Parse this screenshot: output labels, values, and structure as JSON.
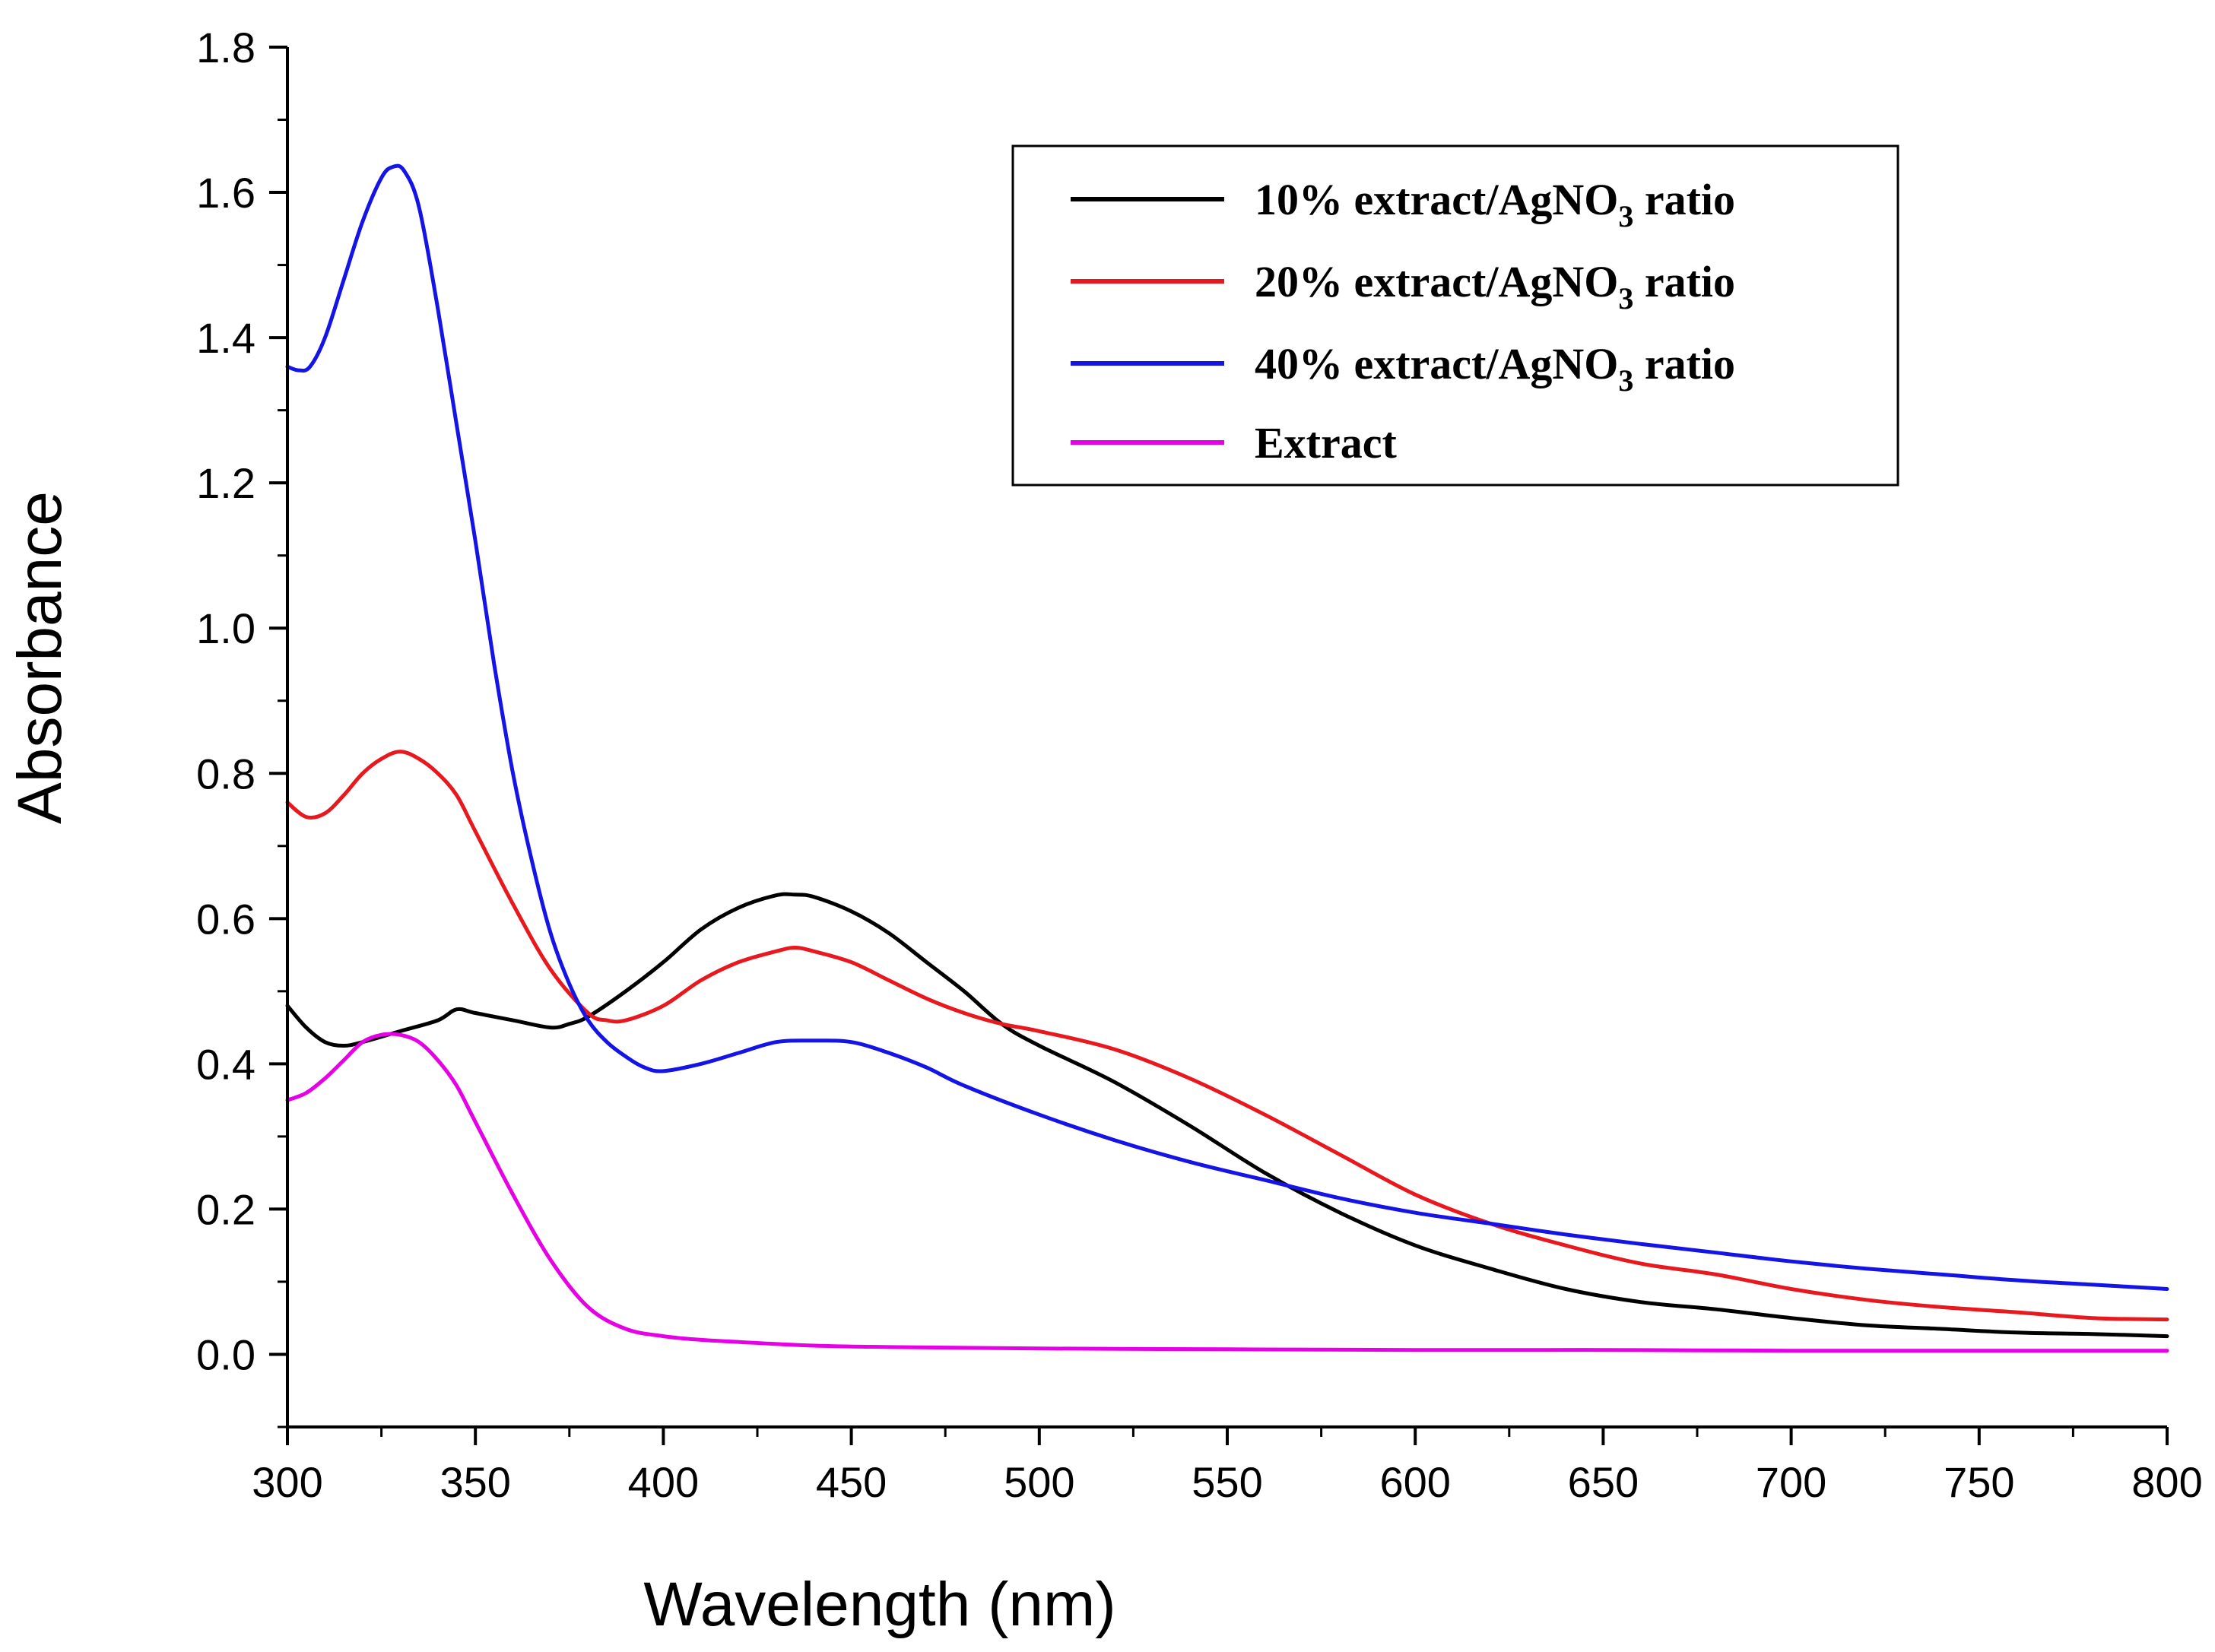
{
  "chart_data": {
    "type": "line",
    "xlabel": "Wavelength (nm)",
    "ylabel": "Absorbance",
    "xlim": [
      300,
      800
    ],
    "ylim": [
      -0.1,
      1.8
    ],
    "xticks": [
      "300",
      "350",
      "400",
      "450",
      "500",
      "550",
      "600",
      "650",
      "700",
      "750",
      "800"
    ],
    "yticks": [
      "0.0",
      "0.2",
      "0.4",
      "0.6",
      "0.8",
      "1.0",
      "1.2",
      "1.4",
      "1.6",
      "1.8"
    ],
    "grid": false,
    "legend_position": "top-right",
    "series": [
      {
        "name": "10% extract/AgNO3 ratio",
        "legend_parts": [
          "10% extract/AgNO",
          "3",
          " ratio"
        ],
        "color": "#000000",
        "x": [
          300,
          305,
          310,
          315,
          320,
          330,
          340,
          345,
          350,
          360,
          370,
          375,
          380,
          390,
          400,
          410,
          420,
          430,
          435,
          440,
          450,
          460,
          470,
          480,
          490,
          500,
          520,
          540,
          560,
          580,
          600,
          620,
          640,
          660,
          680,
          700,
          720,
          740,
          760,
          780,
          800
        ],
        "y": [
          0.48,
          0.45,
          0.43,
          0.425,
          0.43,
          0.445,
          0.46,
          0.475,
          0.47,
          0.46,
          0.45,
          0.455,
          0.465,
          0.5,
          0.54,
          0.585,
          0.615,
          0.632,
          0.633,
          0.63,
          0.61,
          0.58,
          0.54,
          0.5,
          0.455,
          0.425,
          0.375,
          0.315,
          0.25,
          0.195,
          0.15,
          0.118,
          0.09,
          0.072,
          0.062,
          0.05,
          0.04,
          0.035,
          0.03,
          0.028,
          0.025
        ]
      },
      {
        "name": "20% extract/AgNO3 ratio",
        "legend_parts": [
          "20% extract/AgNO",
          "3",
          " ratio"
        ],
        "color": "#e8191e",
        "x": [
          300,
          305,
          310,
          315,
          320,
          325,
          330,
          335,
          340,
          345,
          350,
          360,
          370,
          380,
          385,
          390,
          400,
          410,
          420,
          430,
          435,
          440,
          450,
          460,
          470,
          480,
          490,
          500,
          520,
          540,
          560,
          580,
          600,
          620,
          640,
          660,
          680,
          700,
          720,
          740,
          760,
          780,
          800
        ],
        "y": [
          0.76,
          0.74,
          0.745,
          0.77,
          0.8,
          0.82,
          0.83,
          0.82,
          0.8,
          0.77,
          0.72,
          0.62,
          0.53,
          0.47,
          0.46,
          0.46,
          0.48,
          0.515,
          0.54,
          0.555,
          0.56,
          0.555,
          0.54,
          0.515,
          0.49,
          0.47,
          0.455,
          0.445,
          0.42,
          0.38,
          0.33,
          0.275,
          0.22,
          0.18,
          0.15,
          0.125,
          0.11,
          0.09,
          0.075,
          0.065,
          0.058,
          0.05,
          0.048
        ]
      },
      {
        "name": "40% extract/AgNO3 ratio",
        "legend_parts": [
          "40% extract/AgNO",
          "3",
          " ratio"
        ],
        "color": "#1414e6",
        "x": [
          300,
          303,
          306,
          310,
          315,
          320,
          325,
          328,
          331,
          335,
          340,
          345,
          350,
          355,
          360,
          365,
          370,
          375,
          380,
          385,
          390,
          395,
          400,
          410,
          420,
          430,
          440,
          450,
          460,
          470,
          480,
          500,
          520,
          540,
          560,
          580,
          600,
          620,
          640,
          660,
          680,
          700,
          720,
          740,
          760,
          780,
          800
        ],
        "y": [
          1.36,
          1.355,
          1.36,
          1.4,
          1.48,
          1.56,
          1.62,
          1.635,
          1.63,
          1.58,
          1.44,
          1.28,
          1.12,
          0.95,
          0.8,
          0.68,
          0.58,
          0.51,
          0.46,
          0.43,
          0.41,
          0.395,
          0.39,
          0.4,
          0.415,
          0.43,
          0.432,
          0.43,
          0.415,
          0.395,
          0.37,
          0.33,
          0.295,
          0.265,
          0.24,
          0.215,
          0.195,
          0.18,
          0.165,
          0.152,
          0.14,
          0.128,
          0.118,
          0.11,
          0.102,
          0.096,
          0.09
        ]
      },
      {
        "name": "Extract",
        "legend_parts": [
          "Extract",
          "",
          ""
        ],
        "color": "#e600e6",
        "x": [
          300,
          305,
          310,
          315,
          320,
          325,
          330,
          335,
          340,
          345,
          350,
          360,
          370,
          380,
          390,
          400,
          410,
          420,
          440,
          460,
          500,
          550,
          600,
          650,
          700,
          750,
          800
        ],
        "y": [
          0.35,
          0.36,
          0.38,
          0.405,
          0.43,
          0.44,
          0.44,
          0.43,
          0.405,
          0.37,
          0.32,
          0.22,
          0.13,
          0.065,
          0.035,
          0.025,
          0.02,
          0.017,
          0.012,
          0.01,
          0.008,
          0.007,
          0.006,
          0.006,
          0.005,
          0.005,
          0.005
        ]
      }
    ]
  }
}
